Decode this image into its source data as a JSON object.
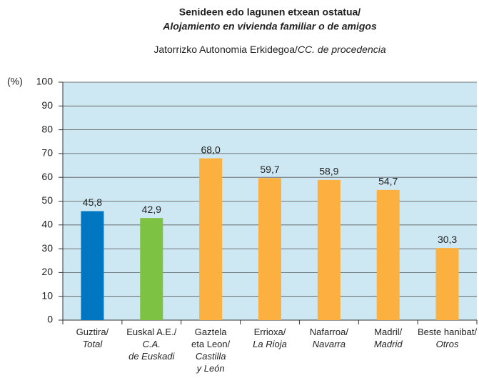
{
  "chart_data": {
    "type": "bar",
    "title": "Senideen edo lagunen etxean ostatua/",
    "title_es": "Alojamiento en vivienda familiar o de amigos",
    "subtitle": "Jatorrizko Autonomia Erkidegoa/",
    "subtitle_es": "CC. de procedencia",
    "ylabel": "(%)",
    "categories": [
      {
        "eu": [
          "Guztira/"
        ],
        "es": [
          "Total"
        ]
      },
      {
        "eu": [
          "Euskal A.E./"
        ],
        "es": [
          "C.A.",
          "de Euskadi"
        ]
      },
      {
        "eu": [
          "Gaztela",
          "eta Leon/"
        ],
        "es": [
          "Castilla",
          "y León"
        ]
      },
      {
        "eu": [
          "Errioxa/"
        ],
        "es": [
          "La Rioja"
        ]
      },
      {
        "eu": [
          "Nafarroa/"
        ],
        "es": [
          "Navarra"
        ]
      },
      {
        "eu": [
          "Madril/"
        ],
        "es": [
          "Madrid"
        ]
      },
      {
        "eu": [
          "Beste hanibat/"
        ],
        "es": [
          "Otros"
        ]
      }
    ],
    "values": [
      45.8,
      42.9,
      68.0,
      59.7,
      58.9,
      54.7,
      30.3
    ],
    "value_labels": [
      "45,8",
      "42,9",
      "68,0",
      "59,7",
      "58,9",
      "54,7",
      "30,3"
    ],
    "colors": [
      "#0077c0",
      "#7dc242",
      "#fbb040",
      "#fbb040",
      "#fbb040",
      "#fbb040",
      "#fbb040"
    ],
    "ylim": [
      0,
      100
    ],
    "yticks": [
      0,
      10,
      20,
      30,
      40,
      50,
      60,
      70,
      80,
      90,
      100
    ],
    "grid": true
  }
}
